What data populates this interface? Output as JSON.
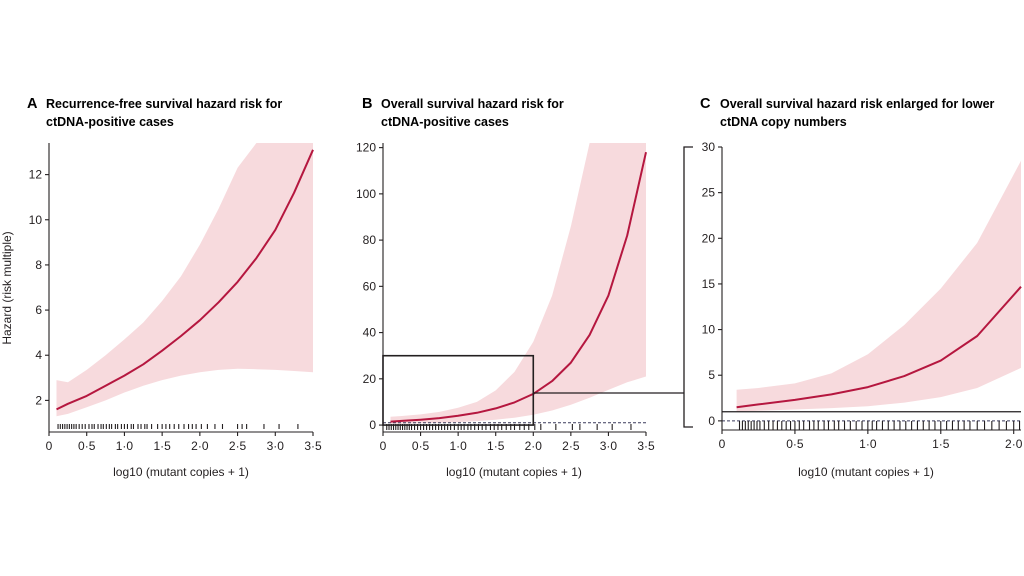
{
  "figure": {
    "colors": {
      "curve": "#b5173f",
      "band": "#f7dadd",
      "axis": "#231f20",
      "reference": "#3a3a5c"
    }
  },
  "chart_data": [
    {
      "panel": "A",
      "type": "line",
      "title": "Recurrence-free survival hazard risk for ctDNA-positive cases",
      "title_lines": [
        "Recurrence-free survival hazard risk for",
        "ctDNA-positive cases"
      ],
      "xlabel": "log10 (mutant copies + 1)",
      "ylabel": "Hazard (risk multiple)",
      "xlim": [
        0,
        3.5
      ],
      "ylim": [
        0.6,
        13.4
      ],
      "xticks": [
        0,
        0.5,
        1.0,
        1.5,
        2.0,
        2.5,
        3.0,
        3.5
      ],
      "xtick_labels": [
        "0",
        "0·5",
        "1·0",
        "1·5",
        "2·0",
        "2·5",
        "3·0",
        "3·5"
      ],
      "yticks": [
        2,
        4,
        6,
        8,
        10,
        12
      ],
      "ytick_labels": [
        "2",
        "4",
        "6",
        "8",
        "10",
        "12"
      ],
      "grid": false,
      "reference_line": null,
      "series": [
        {
          "x": [
            0.1,
            0.25,
            0.5,
            0.75,
            1.0,
            1.25,
            1.5,
            1.75,
            2.0,
            2.25,
            2.5,
            2.75,
            3.0,
            3.25,
            3.5
          ],
          "y": [
            1.6,
            1.85,
            2.2,
            2.65,
            3.1,
            3.6,
            4.2,
            4.85,
            5.55,
            6.35,
            7.25,
            8.3,
            9.55,
            11.2,
            13.1
          ],
          "lower": [
            1.3,
            1.4,
            1.7,
            2.0,
            2.35,
            2.65,
            2.9,
            3.1,
            3.25,
            3.35,
            3.4,
            3.38,
            3.35,
            3.3,
            3.25
          ],
          "upper": [
            2.9,
            2.8,
            3.35,
            4.0,
            4.7,
            5.45,
            6.4,
            7.5,
            8.9,
            10.5,
            12.3,
            13.4,
            13.4,
            13.4,
            13.4
          ]
        }
      ],
      "rug": [
        0.12,
        0.15,
        0.18,
        0.21,
        0.24,
        0.27,
        0.3,
        0.33,
        0.36,
        0.4,
        0.44,
        0.48,
        0.53,
        0.57,
        0.6,
        0.65,
        0.69,
        0.72,
        0.76,
        0.8,
        0.83,
        0.88,
        0.91,
        0.96,
        1.0,
        1.04,
        1.09,
        1.12,
        1.18,
        1.22,
        1.27,
        1.3,
        1.36,
        1.44,
        1.5,
        1.55,
        1.6,
        1.66,
        1.72,
        1.79,
        1.85,
        1.9,
        1.95,
        2.02,
        2.1,
        2.2,
        2.3,
        2.5,
        2.56,
        2.62,
        2.85,
        3.05,
        3.3
      ]
    },
    {
      "panel": "B",
      "type": "line",
      "title": "Overall survival hazard risk for ctDNA-positive cases",
      "title_lines": [
        "Overall survival hazard risk for",
        "ctDNA-positive cases"
      ],
      "xlabel": "log10 (mutant copies + 1)",
      "ylabel": "",
      "xlim": [
        0,
        3.5
      ],
      "ylim": [
        -3,
        122
      ],
      "xticks": [
        0,
        0.5,
        1.0,
        1.5,
        2.0,
        2.5,
        3.0,
        3.5
      ],
      "xtick_labels": [
        "0",
        "0·5",
        "1·0",
        "1·5",
        "2·0",
        "2·5",
        "3·0",
        "3·5"
      ],
      "yticks": [
        0,
        20,
        40,
        60,
        80,
        100,
        120
      ],
      "ytick_labels": [
        "0",
        "20",
        "40",
        "60",
        "80",
        "100",
        "120"
      ],
      "grid": false,
      "reference_line": 1,
      "zoom_box": {
        "x": [
          0,
          2
        ],
        "y": [
          0,
          30
        ]
      },
      "series": [
        {
          "x": [
            0.1,
            0.25,
            0.5,
            0.75,
            1.0,
            1.25,
            1.5,
            1.75,
            2.0,
            2.25,
            2.5,
            2.75,
            3.0,
            3.25,
            3.5
          ],
          "y": [
            1.5,
            1.8,
            2.3,
            3.0,
            4.0,
            5.3,
            7.2,
            9.8,
            13.5,
            19,
            27,
            39,
            56,
            82,
            118
          ],
          "lower": [
            0.5,
            0.6,
            0.8,
            1.0,
            1.3,
            1.7,
            2.3,
            3.2,
            4.5,
            6.3,
            8.8,
            11.8,
            15.2,
            18.5,
            21
          ],
          "upper": [
            3.6,
            3.9,
            4.6,
            5.7,
            7.5,
            10,
            15,
            23,
            36,
            56,
            86,
            122,
            122,
            122,
            122
          ]
        }
      ],
      "rug": [
        0.05,
        0.08,
        0.11,
        0.14,
        0.17,
        0.2,
        0.23,
        0.26,
        0.29,
        0.32,
        0.35,
        0.38,
        0.42,
        0.46,
        0.5,
        0.54,
        0.58,
        0.62,
        0.66,
        0.7,
        0.74,
        0.78,
        0.82,
        0.86,
        0.9,
        0.95,
        1.0,
        1.04,
        1.08,
        1.13,
        1.17,
        1.22,
        1.27,
        1.32,
        1.37,
        1.43,
        1.48,
        1.53,
        1.58,
        1.64,
        1.7,
        1.75,
        1.82,
        1.88,
        1.94,
        2.02,
        2.1,
        2.3,
        2.52,
        2.62,
        2.85,
        3.05,
        3.3
      ]
    },
    {
      "panel": "C",
      "type": "line",
      "title": "Overall survival hazard risk enlarged for lower ctDNA copy numbers",
      "title_lines": [
        "Overall survival hazard risk enlarged for lower",
        "ctDNA copy numbers"
      ],
      "xlabel": "log10 (mutant copies + 1)",
      "ylabel": "",
      "xlim": [
        0,
        2.05
      ],
      "ylim": [
        -1,
        30
      ],
      "xticks": [
        0,
        0.5,
        1.0,
        1.5,
        2.0
      ],
      "xtick_labels": [
        "0",
        "0·5",
        "1·0",
        "1·5",
        "2·0"
      ],
      "yticks": [
        0,
        5,
        10,
        15,
        20,
        25,
        30
      ],
      "ytick_labels": [
        "0",
        "5",
        "10",
        "15",
        "20",
        "25",
        "30"
      ],
      "grid": false,
      "reference_line": 0,
      "baseline_line": 1,
      "series": [
        {
          "x": [
            0.1,
            0.25,
            0.5,
            0.75,
            1.0,
            1.25,
            1.5,
            1.75,
            2.05
          ],
          "y": [
            1.5,
            1.8,
            2.3,
            2.9,
            3.7,
            4.9,
            6.6,
            9.3,
            14.7
          ],
          "lower": [
            1.0,
            1.1,
            1.25,
            1.4,
            1.6,
            2.0,
            2.6,
            3.6,
            5.8
          ],
          "upper": [
            3.4,
            3.6,
            4.1,
            5.2,
            7.3,
            10.5,
            14.5,
            19.5,
            28.5
          ]
        }
      ],
      "rug": [
        0.12,
        0.14,
        0.16,
        0.18,
        0.2,
        0.22,
        0.24,
        0.26,
        0.29,
        0.32,
        0.35,
        0.38,
        0.41,
        0.44,
        0.47,
        0.5,
        0.53,
        0.56,
        0.6,
        0.63,
        0.66,
        0.7,
        0.73,
        0.77,
        0.8,
        0.84,
        0.88,
        0.92,
        0.96,
        1.0,
        1.03,
        1.06,
        1.1,
        1.14,
        1.18,
        1.22,
        1.26,
        1.3,
        1.34,
        1.38,
        1.42,
        1.46,
        1.5,
        1.54,
        1.58,
        1.62,
        1.66,
        1.7,
        1.75,
        1.8,
        1.85,
        1.9,
        1.95,
        2.0,
        2.04
      ]
    }
  ]
}
